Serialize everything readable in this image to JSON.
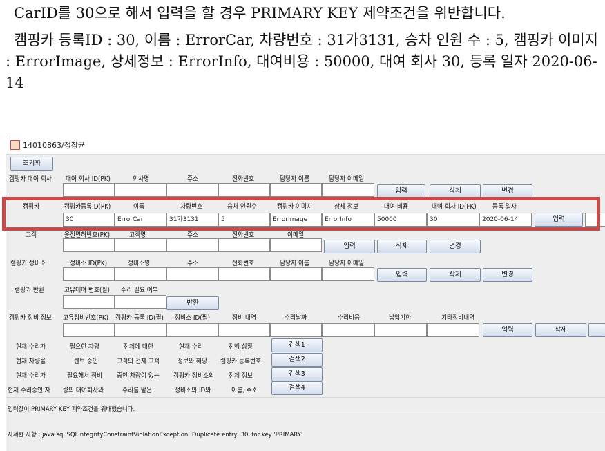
{
  "doc": {
    "p1": "CarID를 30으로 해서 입력을 할 경우 PRIMARY KEY 제약조건을 위반합니다.",
    "p2": "캠핑카 등록ID : 30, 이름 : ErrorCar, 차량번호 : 31가3131, 승차 인원 수 : 5, 캠핑카 이미지 : ErrorImage, 상세정보 : ErrorInfo, 대여비용 : 50000, 대여 회사 30, 등록 일자 2020-06-14"
  },
  "window": {
    "title": "14010863/정창균",
    "reset_label": "초기화"
  },
  "company": {
    "section": "캠핑카 대여 회사",
    "headers": [
      "대여 회사 ID(PK)",
      "회사명",
      "주소",
      "전화번호",
      "담당자 이름",
      "담당자 이메일"
    ],
    "values": [
      "",
      "",
      "",
      "",
      "",
      ""
    ],
    "insert": "입력",
    "delete": "삭제",
    "update": "변경"
  },
  "camper": {
    "section": "캠핑카",
    "headers": [
      "캠핑카등록ID(PK)",
      "이름",
      "차량번호",
      "승차 인원수",
      "캠핑카 이미지",
      "상세 정보",
      "대여 비용",
      "대여 회사 ID(FK)",
      "등록 일자"
    ],
    "values": [
      "30",
      "ErrorCar",
      "31가3131",
      "5",
      "ErrorImage",
      "ErrorInfo",
      "50000",
      "30",
      "2020-06-14"
    ],
    "insert": "입력"
  },
  "customer": {
    "section": "고객",
    "headers": [
      "운전면허번호(PK)",
      "고객명",
      "주소",
      "전화번호",
      "이메일"
    ],
    "values": [
      "",
      "",
      "",
      "",
      ""
    ],
    "insert": "입력",
    "delete": "삭제",
    "update": "변경"
  },
  "shop": {
    "section": "캠핑카 정비소",
    "headers": [
      "정비소 ID(PK)",
      "정비소명",
      "주소",
      "전화번호",
      "담당자 이름",
      "담당자 이메일"
    ],
    "values": [
      "",
      "",
      "",
      "",
      "",
      ""
    ],
    "insert": "입력",
    "delete": "삭제",
    "update": "변경"
  },
  "ret": {
    "section": "캠핑카 반환",
    "headers": [
      "고유대여 번호(필)",
      "수리 필요 여부"
    ],
    "values": [
      "",
      ""
    ],
    "button": "반환"
  },
  "repair": {
    "section": "캠핑카 정비 정보",
    "headers": [
      "고유정비번호(PK)",
      "캠핑카 등록 ID(필)",
      "정비소 ID(필)",
      "정비 내역",
      "수리날짜",
      "수리비용",
      "납입기한",
      "기타정비내역"
    ],
    "values": [
      "",
      "",
      "",
      "",
      "",
      "",
      "",
      ""
    ],
    "insert": "입력",
    "delete": "삭제"
  },
  "search": {
    "rows": [
      {
        "cells": [
          "현재 수리가",
          "필요한 차량",
          "전체에 대한",
          "현재 수리",
          "진행 상황"
        ],
        "button": "검색1"
      },
      {
        "cells": [
          "현재 차량을",
          "렌트 중인",
          "고객의 전체 고객",
          "정보와 해당",
          "캠핑카 등록번호"
        ],
        "button": "검색2"
      },
      {
        "cells": [
          "현재 수리가",
          "필요해서 정비",
          "중인 차량이 없는",
          "캠핑카 정비소의",
          "전체 정보"
        ],
        "button": "검색3"
      },
      {
        "cells": [
          "현재 수리중인 차",
          "량의 대여회사와",
          "수리를 맡은",
          "정비소의 ID와",
          "이름, 주소"
        ],
        "button": "검색4"
      }
    ]
  },
  "messages": {
    "error": "입력값이 PRIMARY KEY 제약조건을 위배했습니다.",
    "detail": "자세한 사항 : java.sql.SQLIntegrityConstraintViolationException: Duplicate entry '30' for key 'PRIMARY'"
  }
}
